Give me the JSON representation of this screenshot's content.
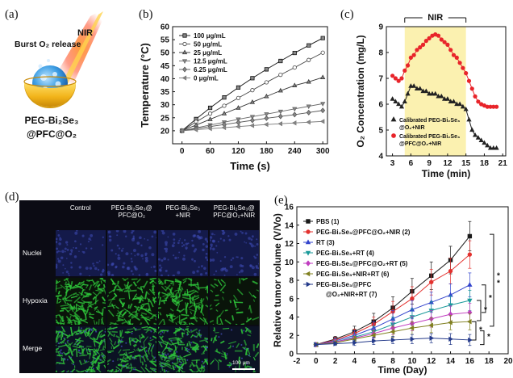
{
  "panels": {
    "a": {
      "label": "(a)",
      "burst_text": "Burst O₂ release",
      "nir_text": "NIR",
      "name_line1": "PEG-Bi₂Se₃",
      "name_line2": "@PFC@O₂"
    },
    "b": {
      "label": "(b)"
    },
    "c": {
      "label": "(c)"
    },
    "d": {
      "label": "(d)",
      "columns": [
        "Control",
        "PEG-Bi₂Se₃@\nPFC@O₂",
        "PEG-Bi₂Se₃\n+NIR",
        "PEG-Bi₂Se₃@\nPFC@O₂+NIR"
      ],
      "rows": [
        "Nuclei",
        "Hypoxia",
        "Merge"
      ],
      "hypoxia_density": [
        0.95,
        0.75,
        0.85,
        0.3
      ],
      "scale_bar": "100 μm",
      "colors": {
        "nuclei": "#141a4a",
        "hypoxia": "#2ec43a",
        "background": "#0b0b14"
      }
    },
    "e": {
      "label": "(e)"
    }
  },
  "chart_data": [
    {
      "id": "b",
      "type": "line",
      "xlabel": "Time (s)",
      "ylabel": "Temperature (°C)",
      "xlim": [
        -20,
        310
      ],
      "ylim": [
        15,
        60
      ],
      "xticks": [
        0,
        60,
        120,
        180,
        240,
        300
      ],
      "yticks": [
        20,
        25,
        30,
        35,
        40,
        45,
        50,
        55,
        60
      ],
      "legend_position": "top-left",
      "x": [
        0,
        30,
        60,
        90,
        120,
        150,
        180,
        210,
        240,
        270,
        300
      ],
      "series": [
        {
          "name": "100 μg/mL",
          "marker": "square",
          "values": [
            20.0,
            24.5,
            28.8,
            32.8,
            36.6,
            40.2,
            43.6,
            46.8,
            49.9,
            52.8,
            55.6
          ]
        },
        {
          "name": "50 μg/mL",
          "marker": "circle",
          "values": [
            20.0,
            23.4,
            26.6,
            29.6,
            32.6,
            35.6,
            38.6,
            41.5,
            44.3,
            47.2,
            50.0
          ]
        },
        {
          "name": "25 μg/mL",
          "marker": "triangle-up",
          "values": [
            20.0,
            22.2,
            24.4,
            26.6,
            28.8,
            31.0,
            33.2,
            35.4,
            37.4,
            38.8,
            40.5
          ]
        },
        {
          "name": "12.5 μg/mL",
          "marker": "triangle-down",
          "values": [
            20.0,
            21.1,
            22.2,
            23.3,
            24.4,
            25.4,
            26.4,
            27.4,
            28.4,
            29.4,
            30.4
          ]
        },
        {
          "name": "6.25 μg/mL",
          "marker": "diamond",
          "values": [
            20.0,
            20.8,
            21.6,
            22.4,
            23.2,
            24.0,
            24.8,
            25.5,
            26.2,
            27.0,
            27.8
          ]
        },
        {
          "name": "0 μg/mL",
          "marker": "triangle-left",
          "values": [
            20.0,
            20.4,
            20.8,
            21.2,
            21.6,
            22.0,
            22.4,
            22.7,
            23.0,
            23.3,
            23.6
          ]
        }
      ]
    },
    {
      "id": "c",
      "type": "line",
      "xlabel": "Time (min)",
      "ylabel": "O₂ Concentration (mg/L)",
      "xlim": [
        2,
        21.5
      ],
      "ylim": [
        4,
        9
      ],
      "xticks": [
        3,
        6,
        9,
        12,
        15,
        18,
        21
      ],
      "yticks": [
        4,
        5,
        6,
        7,
        8,
        9
      ],
      "shaded_region": {
        "x0": 5,
        "x1": 15,
        "label": "NIR",
        "color": "#fbf1b0"
      },
      "legend_position": "bottom-left",
      "series": [
        {
          "name": "Calibrated PEG-Bi₂Se₃\n@O₂+NIR",
          "color": "#222222",
          "marker": "triangle-up",
          "x": [
            3,
            3.5,
            4,
            4.5,
            5,
            5.5,
            6,
            6.5,
            7,
            7.5,
            8,
            8.5,
            9,
            9.5,
            10,
            10.5,
            11,
            11.5,
            12,
            12.5,
            13,
            13.5,
            14,
            14.5,
            15,
            15.5,
            16,
            16.5,
            17,
            17.5,
            18,
            18.5,
            19,
            19.5,
            20
          ],
          "values": [
            6.2,
            6.1,
            6.0,
            5.9,
            6.1,
            6.4,
            6.7,
            6.7,
            6.6,
            6.6,
            6.5,
            6.5,
            6.4,
            6.4,
            6.4,
            6.3,
            6.3,
            6.2,
            6.2,
            6.1,
            6.1,
            6.0,
            6.0,
            5.9,
            5.8,
            5.4,
            5.0,
            4.8,
            4.7,
            4.6,
            4.5,
            4.4,
            4.3,
            4.3,
            4.3
          ]
        },
        {
          "name": "Calibrated PEG-Bi₂Se₃\n@PFC@O₂+NIR",
          "color": "#e8242a",
          "marker": "circle",
          "x": [
            3,
            3.5,
            4,
            4.5,
            5,
            5.5,
            6,
            6.5,
            7,
            7.5,
            8,
            8.5,
            9,
            9.5,
            10,
            10.5,
            11,
            11.5,
            12,
            12.5,
            13,
            13.5,
            14,
            14.5,
            15,
            15.5,
            16,
            16.5,
            17,
            17.5,
            18,
            18.5,
            19,
            19.5,
            20
          ],
          "values": [
            7.1,
            7.0,
            6.9,
            7.0,
            7.3,
            7.5,
            7.8,
            7.9,
            8.1,
            8.2,
            8.3,
            8.45,
            8.55,
            8.65,
            8.7,
            8.65,
            8.5,
            8.4,
            8.3,
            8.1,
            7.9,
            7.8,
            7.6,
            7.4,
            7.2,
            6.9,
            6.6,
            6.3,
            6.1,
            6.0,
            5.95,
            5.9,
            5.9,
            5.9,
            5.9
          ]
        }
      ]
    },
    {
      "id": "e",
      "type": "line",
      "xlabel": "Time (Day)",
      "ylabel": "Relative tumor volume (V/Vo)",
      "xlim": [
        -2,
        20
      ],
      "ylim": [
        0,
        16
      ],
      "xticks": [
        -2,
        0,
        2,
        4,
        6,
        8,
        10,
        12,
        14,
        16,
        18,
        20
      ],
      "yticks": [
        0,
        2,
        4,
        6,
        8,
        10,
        12,
        14,
        16
      ],
      "legend_position": "top-left",
      "significance": [
        {
          "from": 13.0,
          "to": 3.0,
          "label": "**"
        },
        {
          "from": 7.5,
          "to": 4.5,
          "label": "*"
        },
        {
          "from": 5.8,
          "to": 3.6,
          "label": "*"
        },
        {
          "from": 3.5,
          "to": 1.5,
          "label": "*"
        },
        {
          "from": 2.5,
          "to": 1.0,
          "label": "*"
        }
      ],
      "x": [
        0,
        2,
        4,
        6,
        8,
        10,
        12,
        14,
        16
      ],
      "series": [
        {
          "name": "PBS (1)",
          "color": "#1a1a1a",
          "marker": "square",
          "values": [
            1.0,
            1.6,
            2.4,
            3.5,
            5.0,
            6.8,
            8.5,
            10.2,
            12.8
          ],
          "errors": [
            0.1,
            0.3,
            0.6,
            0.9,
            1.2,
            1.4,
            1.5,
            1.5,
            1.6
          ]
        },
        {
          "name": "PEG-Bi₂Se₃@PFC@O₂+NIR (2)",
          "color": "#e3312e",
          "marker": "circle",
          "values": [
            1.0,
            1.5,
            2.2,
            3.2,
            4.6,
            6.0,
            7.8,
            9.0,
            10.8
          ],
          "errors": [
            0.1,
            0.3,
            0.5,
            0.8,
            1.1,
            1.3,
            1.4,
            1.4,
            1.5
          ]
        },
        {
          "name": "RT (3)",
          "color": "#3344cc",
          "marker": "triangle-up",
          "values": [
            1.0,
            1.4,
            2.0,
            2.8,
            3.8,
            4.8,
            5.6,
            6.4,
            7.5
          ],
          "errors": [
            0.1,
            0.3,
            0.5,
            0.7,
            0.9,
            1.0,
            1.1,
            1.2,
            1.3
          ]
        },
        {
          "name": "PEG-Bi₂Se₃+RT (4)",
          "color": "#1a9a9a",
          "marker": "triangle-down",
          "values": [
            1.0,
            1.3,
            1.8,
            2.4,
            3.2,
            4.0,
            4.7,
            5.3,
            5.8
          ],
          "errors": [
            0.1,
            0.3,
            0.4,
            0.6,
            0.8,
            0.9,
            1.0,
            1.0,
            1.1
          ]
        },
        {
          "name": "PEG-Bi₂Se₃@PFC@O₂+RT (5)",
          "color": "#c03cc0",
          "marker": "diamond",
          "values": [
            1.0,
            1.3,
            1.7,
            2.2,
            2.8,
            3.3,
            3.8,
            4.3,
            4.5
          ],
          "errors": [
            0.1,
            0.2,
            0.4,
            0.5,
            0.7,
            0.8,
            0.9,
            0.9,
            1.0
          ]
        },
        {
          "name": "PEG-Bi₂Se₃+NIR+RT (6)",
          "color": "#808020",
          "marker": "triangle-left",
          "values": [
            1.0,
            1.2,
            1.6,
            2.0,
            2.4,
            2.8,
            3.1,
            3.4,
            3.5
          ],
          "errors": [
            0.1,
            0.2,
            0.3,
            0.5,
            0.6,
            0.7,
            0.8,
            0.8,
            0.9
          ]
        },
        {
          "name": "PEG-Bi₂Se₃@PFC\n@O₂+NIR+RT (7)",
          "color": "#243a8a",
          "marker": "triangle-right",
          "values": [
            1.0,
            1.1,
            1.2,
            1.4,
            1.5,
            1.6,
            1.7,
            1.6,
            1.5
          ],
          "errors": [
            0.1,
            0.2,
            0.3,
            0.4,
            0.4,
            0.5,
            0.5,
            0.6,
            0.6
          ]
        }
      ]
    }
  ]
}
